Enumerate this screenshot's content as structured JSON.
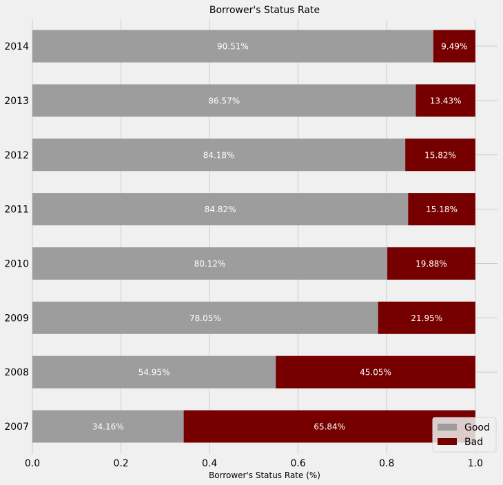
{
  "chart_data": {
    "type": "bar",
    "orientation": "horizontal",
    "stacked": true,
    "title": "Borrower's Status Rate",
    "xlabel": "Borrower's Status Rate (%)",
    "ylabel": "",
    "xlim": [
      0.0,
      1.05
    ],
    "xticks": [
      "0.0",
      "0.2",
      "0.4",
      "0.6",
      "0.8",
      "1.0"
    ],
    "categories": [
      "2007",
      "2008",
      "2009",
      "2010",
      "2011",
      "2012",
      "2013",
      "2014"
    ],
    "series": [
      {
        "name": "Good",
        "color": "#9d9d9d",
        "values": [
          0.3416,
          0.5495,
          0.7805,
          0.8012,
          0.8482,
          0.8418,
          0.8657,
          0.9051
        ],
        "labels": [
          "34.16%",
          "54.95%",
          "78.05%",
          "80.12%",
          "84.82%",
          "84.18%",
          "86.57%",
          "90.51%"
        ]
      },
      {
        "name": "Bad",
        "color": "#760000",
        "values": [
          0.6584,
          0.4505,
          0.2195,
          0.1988,
          0.1518,
          0.1582,
          0.1343,
          0.0949
        ],
        "labels": [
          "65.84%",
          "45.05%",
          "21.95%",
          "19.88%",
          "15.18%",
          "15.82%",
          "13.43%",
          "9.49%"
        ]
      }
    ],
    "grid": true,
    "legend_position": "bottom-right"
  }
}
